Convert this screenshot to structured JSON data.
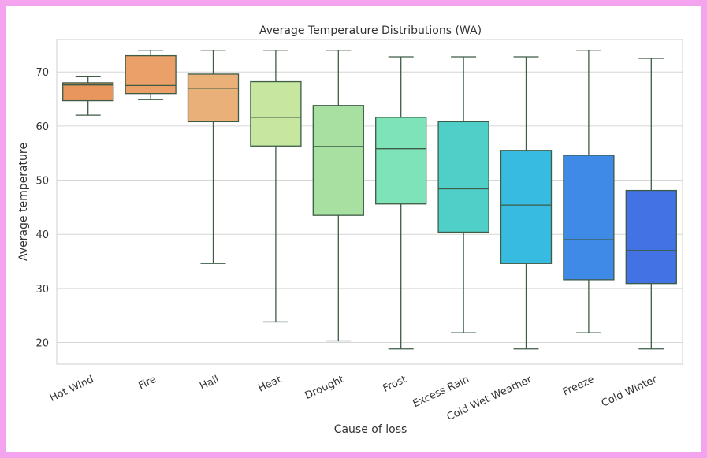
{
  "chart_data": {
    "type": "box",
    "title": "Average Temperature Distributions (WA)",
    "xlabel": "Cause of loss",
    "ylabel": "Average temperature",
    "ylim": [
      16,
      76
    ],
    "yticks": [
      20,
      30,
      40,
      50,
      60,
      70
    ],
    "grid": true,
    "categories": [
      "Hot Wind",
      "Fire",
      "Hail",
      "Heat",
      "Drought",
      "Frost",
      "Excess Rain",
      "Cold Wet Weather",
      "Freeze",
      "Cold Winter"
    ],
    "boxes": [
      {
        "min": 62.0,
        "q1": 64.7,
        "median": 67.6,
        "q3": 68.0,
        "max": 69.1,
        "color": "#e8965e"
      },
      {
        "min": 64.9,
        "q1": 66.0,
        "median": 67.5,
        "q3": 73.0,
        "max": 74.0,
        "color": "#eba06a"
      },
      {
        "min": 34.6,
        "q1": 60.8,
        "median": 67.0,
        "q3": 69.6,
        "max": 74.0,
        "color": "#eab07a"
      },
      {
        "min": 23.8,
        "q1": 56.3,
        "median": 61.6,
        "q3": 68.2,
        "max": 74.0,
        "color": "#c7e7a0"
      },
      {
        "min": 20.3,
        "q1": 43.5,
        "median": 56.2,
        "q3": 63.8,
        "max": 74.0,
        "color": "#a7e0a0"
      },
      {
        "min": 18.8,
        "q1": 45.6,
        "median": 55.8,
        "q3": 61.6,
        "max": 72.8,
        "color": "#7ee3b8"
      },
      {
        "min": 21.8,
        "q1": 40.4,
        "median": 48.4,
        "q3": 60.8,
        "max": 72.8,
        "color": "#4fcfc8"
      },
      {
        "min": 18.8,
        "q1": 34.6,
        "median": 45.4,
        "q3": 55.5,
        "max": 72.8,
        "color": "#37bbe0"
      },
      {
        "min": 21.8,
        "q1": 31.6,
        "median": 39.0,
        "q3": 54.6,
        "max": 74.0,
        "color": "#3f8ae6"
      },
      {
        "min": 18.8,
        "q1": 30.9,
        "median": 37.0,
        "q3": 48.1,
        "max": 72.5,
        "color": "#4372e4"
      }
    ],
    "whisker_color": "#3d5b45"
  }
}
